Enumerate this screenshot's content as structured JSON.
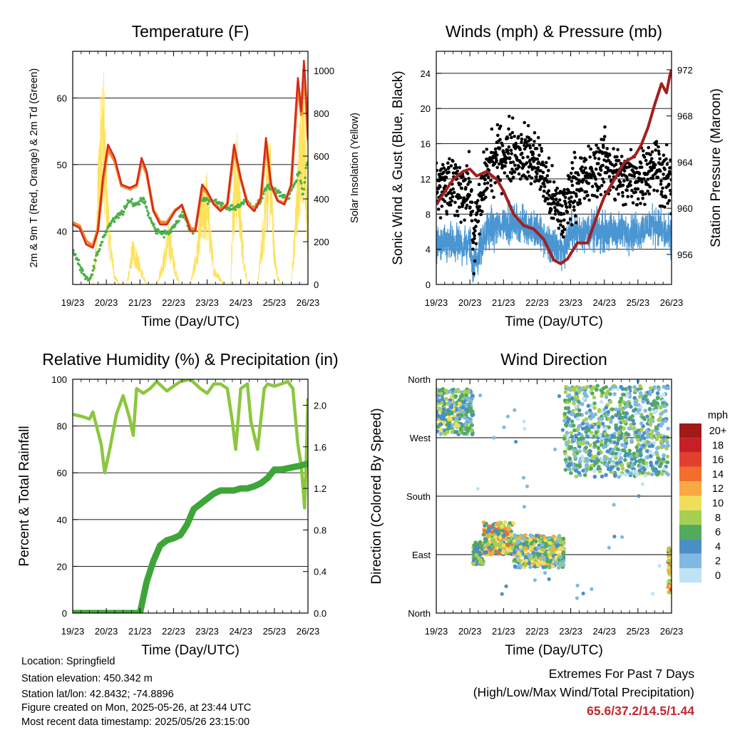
{
  "info": {
    "location": "Location: Springfield",
    "elevation": "Station elevation: 450.342 m",
    "latlon": "Station lat/lon: 42.8432; -74.8896",
    "created": "Figure created on Mon, 2025-05-26, at 23:44 UTC",
    "timestamp": "Most recent data timestamp: 2025/05/26 23:15:00"
  },
  "extremes": {
    "title": "Extremes For Past 7 Days",
    "subtitle": "(High/Low/Max Wind/Total Precipitation)",
    "values": "65.6/37.2/14.5/1.44"
  },
  "colors": {
    "temp2m": "#d62a1f",
    "temp9m": "#f08a2c",
    "dewpoint": "#4bb04a",
    "solar": "#fde25a",
    "wind": "#4a96d2",
    "gust": "#000000",
    "pressure": "#a31f1f",
    "rh": "#8cc63f",
    "precip": "#3ea639"
  },
  "chart_data": [
    {
      "type": "line",
      "title": "Temperature (F)",
      "xlabel": "Time (Day/UTC)",
      "ylabel": "2m & 9m T (Red, Orange) & 2m Td (Green)",
      "y2label": "Solar Insolation (Yellow)",
      "x_ticks": [
        "19/23",
        "20/23",
        "21/23",
        "22/23",
        "23/23",
        "24/23",
        "25/23",
        "26/23"
      ],
      "xlim": [
        0,
        7
      ],
      "ylim": [
        32,
        67
      ],
      "y_ticks": [
        40,
        50,
        60
      ],
      "y2lim": [
        0,
        1090
      ],
      "y2_ticks": [
        0,
        200,
        400,
        600,
        800,
        1000
      ],
      "grid": true,
      "series": [
        {
          "name": "2m T",
          "axis": "left",
          "color": "#d62a1f",
          "x": [
            0,
            0.2,
            0.4,
            0.6,
            0.75,
            0.9,
            1.05,
            1.25,
            1.45,
            1.7,
            1.9,
            2.05,
            2.2,
            2.4,
            2.6,
            2.8,
            3.05,
            3.25,
            3.5,
            3.65,
            3.85,
            4.0,
            4.2,
            4.4,
            4.6,
            4.8,
            5.0,
            5.2,
            5.4,
            5.6,
            5.75,
            5.9,
            6.1,
            6.3,
            6.5,
            6.7,
            6.8,
            6.88,
            6.95,
            7.0
          ],
          "y": [
            41,
            40.5,
            38,
            37.5,
            40,
            48,
            53,
            51,
            47,
            46.5,
            47,
            51,
            49,
            43,
            41,
            41,
            43,
            44,
            40,
            40,
            47,
            46,
            44,
            43,
            44,
            53,
            48,
            44,
            43,
            45,
            54,
            47,
            44.5,
            44,
            47,
            63,
            58,
            65.6,
            60,
            54
          ]
        },
        {
          "name": "9m T",
          "axis": "left",
          "color": "#f08a2c",
          "x": [
            0,
            0.2,
            0.4,
            0.6,
            0.75,
            0.9,
            1.05,
            1.25,
            1.45,
            1.7,
            1.9,
            2.05,
            2.2,
            2.4,
            2.6,
            2.8,
            3.05,
            3.25,
            3.5,
            3.65,
            3.85,
            4.0,
            4.2,
            4.4,
            4.6,
            4.8,
            5.0,
            5.2,
            5.4,
            5.6,
            5.75,
            5.9,
            6.1,
            6.3,
            6.5,
            6.7,
            6.8,
            6.88,
            6.95,
            7.0
          ],
          "y": [
            41.3,
            40.8,
            38.5,
            37.8,
            40.3,
            47.5,
            52.3,
            50.5,
            46.8,
            46.3,
            46.8,
            50.4,
            48.6,
            43.2,
            41.4,
            41.3,
            43.2,
            43.8,
            40.4,
            40.3,
            46.5,
            45.7,
            44.1,
            43.3,
            44.1,
            52.2,
            47.8,
            44.2,
            43.3,
            45,
            53.2,
            46.9,
            44.6,
            44.2,
            46.8,
            62,
            57.5,
            64.3,
            59.2,
            53.6
          ]
        },
        {
          "name": "2m Td",
          "axis": "left",
          "color": "#4bb04a",
          "x": [
            0,
            0.2,
            0.4,
            0.55,
            0.7,
            0.9,
            1.1,
            1.3,
            1.5,
            1.7,
            1.9,
            2.1,
            2.3,
            2.5,
            2.7,
            2.9,
            3.1,
            3.3,
            3.5,
            3.65,
            3.8,
            4.0,
            4.2,
            4.4,
            4.6,
            4.8,
            5.0,
            5.2,
            5.4,
            5.6,
            5.8,
            6.0,
            6.2,
            6.4,
            6.6,
            6.75,
            6.85,
            6.95,
            7.0
          ],
          "y": [
            37,
            35,
            33,
            33,
            36,
            39,
            41,
            42,
            43,
            44.5,
            44,
            45,
            42,
            40,
            39.5,
            40,
            41.5,
            42.5,
            40,
            40,
            45,
            44.5,
            44.5,
            44,
            43.5,
            43.5,
            44,
            44.5,
            43.5,
            44.5,
            47,
            46,
            45.5,
            45,
            47,
            49,
            45,
            50,
            50
          ]
        },
        {
          "name": "Solar Insolation",
          "axis": "right",
          "color": "#fde25a",
          "x": [
            0.3,
            0.6,
            0.7,
            0.75,
            0.8,
            0.85,
            0.92,
            1.0,
            1.1,
            1.25,
            1.4,
            1.6,
            1.7,
            1.75,
            1.8,
            1.85,
            1.9,
            1.95,
            2.0,
            2.1,
            2.2,
            2.3,
            2.5,
            2.7,
            2.8,
            2.85,
            2.9,
            2.95,
            3.0,
            3.1,
            3.2,
            3.5,
            3.7,
            3.8,
            3.9,
            4.0,
            4.1,
            4.2,
            4.5,
            4.7,
            4.75,
            4.8,
            4.85,
            4.9,
            4.95,
            5.0,
            5.1,
            5.2,
            5.5,
            5.7,
            5.75,
            5.8,
            5.85,
            5.9,
            5.95,
            6.0,
            6.1,
            6.2,
            6.5,
            6.7,
            6.75,
            6.8,
            6.85,
            6.9,
            6.95,
            7.0
          ],
          "y": [
            0,
            0,
            250,
            600,
            800,
            1000,
            1050,
            600,
            300,
            50,
            0,
            0,
            100,
            200,
            220,
            200,
            180,
            150,
            100,
            50,
            0,
            0,
            0,
            150,
            250,
            300,
            280,
            220,
            150,
            60,
            0,
            0,
            200,
            400,
            500,
            550,
            300,
            100,
            0,
            0,
            400,
            600,
            700,
            720,
            600,
            400,
            150,
            0,
            0,
            400,
            600,
            700,
            740,
            650,
            450,
            200,
            50,
            0,
            0,
            600,
            800,
            1000,
            1080,
            950,
            700,
            300
          ]
        }
      ]
    },
    {
      "type": "scatter",
      "title": "Winds (mph) & Pressure (mb)",
      "xlabel": "Time (Day/UTC)",
      "ylabel": "Sonic Wind & Gust (Blue, Black)",
      "y2label": "Station Pressure (Maroon)",
      "x_ticks": [
        "19/23",
        "20/23",
        "21/23",
        "22/23",
        "23/23",
        "24/23",
        "25/23",
        "26/23"
      ],
      "xlim": [
        0,
        7
      ],
      "ylim": [
        0,
        26.5
      ],
      "y_ticks": [
        0,
        4,
        8,
        12,
        16,
        20,
        24
      ],
      "y2lim": [
        953.4,
        973.6
      ],
      "y2_ticks": [
        956,
        960,
        964,
        968,
        972
      ],
      "grid": true,
      "series": [
        {
          "name": "Sonic Wind",
          "axis": "left",
          "kind": "line",
          "color": "#4a96d2",
          "x": [
            0,
            0.5,
            1.0,
            1.1,
            1.5,
            2.0,
            2.5,
            3.0,
            3.5,
            3.8,
            4.0,
            4.5,
            5.0,
            5.5,
            6.0,
            6.5,
            7.0
          ],
          "y": [
            4.5,
            4.5,
            4.5,
            2,
            6,
            7,
            7,
            6,
            4,
            4,
            6,
            6,
            6,
            6,
            6,
            7,
            5
          ]
        },
        {
          "name": "Gust",
          "axis": "left",
          "kind": "points",
          "color": "#000000",
          "x": [
            0,
            0.5,
            1.0,
            1.1,
            1.5,
            2.0,
            2.5,
            3.0,
            3.5,
            3.8,
            4.0,
            4.5,
            5.0,
            5.5,
            6.0,
            6.5,
            7.0
          ],
          "y": [
            11,
            11,
            11,
            5,
            13,
            15,
            15,
            14,
            9,
            8,
            11,
            12,
            14,
            12,
            12,
            14,
            11
          ]
        },
        {
          "name": "Station Pressure",
          "axis": "right",
          "kind": "line",
          "color": "#a31f1f",
          "x": [
            0,
            0.2,
            0.5,
            0.8,
            1.0,
            1.2,
            1.5,
            1.8,
            2.0,
            2.3,
            2.6,
            2.9,
            3.2,
            3.5,
            3.7,
            3.9,
            4.2,
            4.5,
            4.8,
            5.0,
            5.3,
            5.6,
            5.9,
            6.1,
            6.3,
            6.5,
            6.7,
            6.85,
            6.95,
            7.0
          ],
          "y": [
            960.3,
            961.2,
            962.5,
            963.2,
            963.4,
            962.8,
            963.2,
            962.5,
            961.5,
            959.5,
            958.5,
            958.2,
            957.3,
            955.5,
            955.2,
            955.6,
            957,
            957,
            959.5,
            961,
            962.5,
            964,
            964.5,
            965.5,
            967,
            969,
            970.8,
            970,
            971.5,
            972
          ]
        }
      ]
    },
    {
      "type": "line",
      "title": "Relative Humidity (%) & Precipitation (in)",
      "xlabel": "Time (Day/UTC)",
      "ylabel": "Percent & Total Rainfall",
      "x_ticks": [
        "19/23",
        "20/23",
        "21/23",
        "22/23",
        "23/23",
        "24/23",
        "25/23",
        "26/23"
      ],
      "xlim": [
        0,
        7
      ],
      "ylim": [
        0,
        100
      ],
      "y_ticks": [
        0,
        20,
        40,
        60,
        80,
        100
      ],
      "y2lim": [
        0,
        2.25
      ],
      "y2_ticks": [
        "0.0",
        "0.4",
        "0.8",
        "1.2",
        "1.6",
        "2.0"
      ],
      "grid": true,
      "series": [
        {
          "name": "Relative Humidity",
          "axis": "left",
          "color": "#8cc63f",
          "x": [
            0,
            0.3,
            0.5,
            0.6,
            0.85,
            0.95,
            1.1,
            1.3,
            1.5,
            1.7,
            1.8,
            1.9,
            2.1,
            2.3,
            2.5,
            2.8,
            3.0,
            3.2,
            3.5,
            3.8,
            4.0,
            4.2,
            4.4,
            4.6,
            4.75,
            4.85,
            5.0,
            5.2,
            5.3,
            5.5,
            5.7,
            5.8,
            6.0,
            6.2,
            6.4,
            6.55,
            6.6,
            6.7,
            6.8,
            6.9,
            6.95,
            7.0
          ],
          "y": [
            85,
            84,
            83,
            86,
            72,
            60,
            70,
            85,
            93,
            83,
            76,
            96,
            94,
            96,
            99,
            95,
            97,
            99,
            100,
            96,
            94,
            98,
            98,
            96,
            82,
            70,
            96,
            98,
            82,
            70,
            96,
            98,
            97,
            98,
            99,
            96,
            88,
            72,
            63,
            45,
            65,
            92
          ]
        },
        {
          "name": "Total Precipitation",
          "axis": "right",
          "color": "#3ea639",
          "x": [
            0,
            1.5,
            1.8,
            2.0,
            2.2,
            2.4,
            2.6,
            2.8,
            3.0,
            3.2,
            3.4,
            3.6,
            3.8,
            4.0,
            4.2,
            4.4,
            4.6,
            4.8,
            5.0,
            5.2,
            5.4,
            5.6,
            5.8,
            6.0,
            6.2,
            6.5,
            6.8,
            7.0
          ],
          "y": [
            0,
            0,
            0,
            0,
            0.3,
            0.5,
            0.65,
            0.7,
            0.72,
            0.75,
            0.85,
            1.0,
            1.05,
            1.1,
            1.15,
            1.18,
            1.18,
            1.18,
            1.2,
            1.2,
            1.22,
            1.25,
            1.3,
            1.38,
            1.38,
            1.4,
            1.42,
            1.44
          ]
        }
      ]
    },
    {
      "type": "scatter",
      "title": "Wind Direction",
      "xlabel": "Time (Day/UTC)",
      "ylabel": "Direction (Colored By Speed)",
      "x_ticks": [
        "19/23",
        "20/23",
        "21/23",
        "22/23",
        "23/23",
        "24/23",
        "25/23",
        "26/23"
      ],
      "xlim": [
        0,
        7
      ],
      "y_ticks": [
        "North",
        "East",
        "South",
        "West",
        "North"
      ],
      "ylim": [
        0,
        360
      ],
      "grid": true,
      "legend": {
        "title": "mph",
        "labels": [
          "20+",
          "18",
          "16",
          "14",
          "12",
          "10",
          "8",
          "6",
          "4",
          "2",
          "0"
        ],
        "colors": [
          "#a11a1a",
          "#c62026",
          "#e2402c",
          "#f36d2d",
          "#f9a844",
          "#f0de5a",
          "#a6cf52",
          "#52aa5c",
          "#4a8fc4",
          "#7fb9e2",
          "#bfe3f5"
        ]
      },
      "clusters": [
        {
          "x": [
            0,
            1.1
          ],
          "dir": [
            275,
            345
          ],
          "speed": [
            1,
            10
          ]
        },
        {
          "x": [
            1.1,
            1.4
          ],
          "dir": [
            75,
            110
          ],
          "speed": [
            3,
            9
          ]
        },
        {
          "x": [
            1.4,
            2.3
          ],
          "dir": [
            90,
            140
          ],
          "speed": [
            3,
            14
          ]
        },
        {
          "x": [
            2.3,
            3.8
          ],
          "dir": [
            70,
            120
          ],
          "speed": [
            1,
            12
          ]
        },
        {
          "x": [
            3.8,
            6.9
          ],
          "dir": [
            210,
            350
          ],
          "speed": [
            0,
            9
          ]
        },
        {
          "x": [
            6.9,
            7.0
          ],
          "dir": [
            30,
            100
          ],
          "speed": [
            6,
            16
          ]
        }
      ]
    }
  ]
}
